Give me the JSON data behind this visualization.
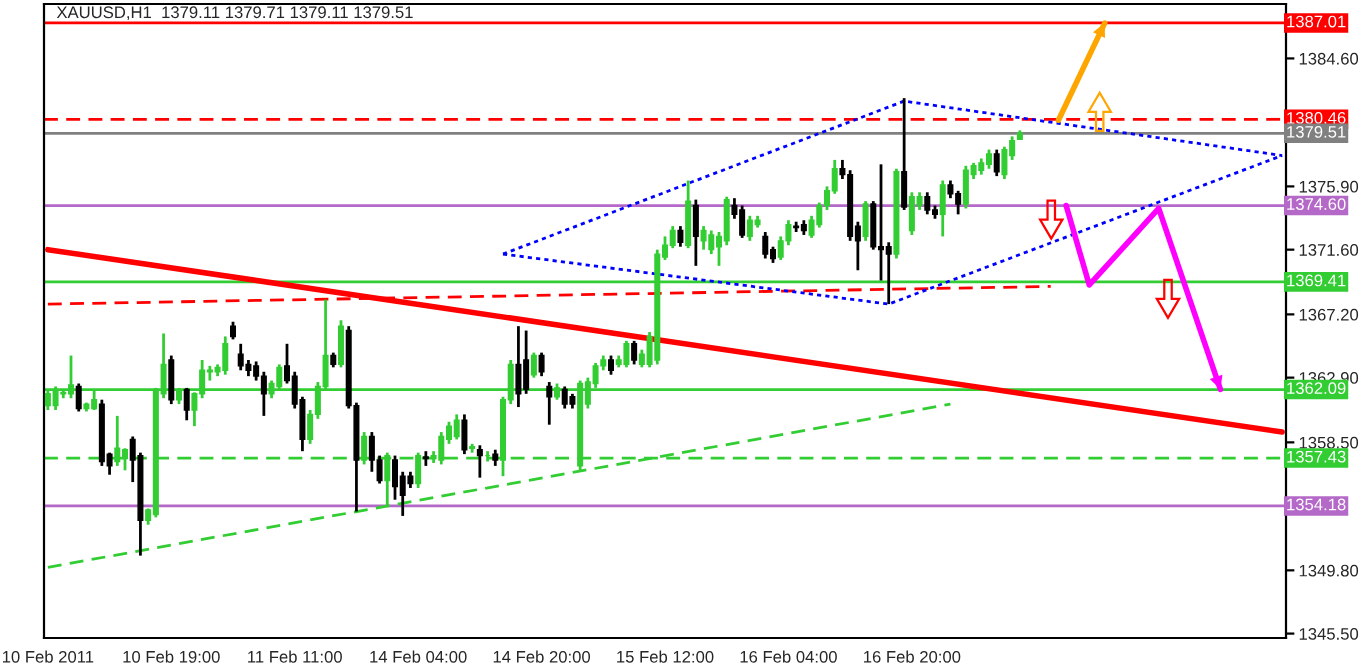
{
  "chart_data": {
    "type": "candlestick",
    "title": "XAUUSD,H1  1379.11 1379.71 1379.11 1379.51",
    "categories": [
      "10 Feb 2011",
      null,
      null,
      null,
      null,
      null,
      null,
      null,
      null,
      null,
      null,
      null,
      null,
      null,
      null,
      null,
      "10 Feb 19:00",
      null,
      null,
      null,
      null,
      null,
      null,
      null,
      null,
      null,
      null,
      null,
      null,
      null,
      null,
      null,
      "11 Feb 11:00",
      null,
      null,
      null,
      null,
      null,
      null,
      null,
      null,
      null,
      null,
      null,
      null,
      null,
      null,
      null,
      "14 Feb 04:00",
      null,
      null,
      null,
      null,
      null,
      null,
      null,
      null,
      null,
      null,
      null,
      null,
      null,
      null,
      null,
      "14 Feb 20:00",
      null,
      null,
      null,
      null,
      null,
      null,
      null,
      null,
      null,
      null,
      null,
      null,
      null,
      null,
      null,
      "15 Feb 12:00",
      null,
      null,
      null,
      null,
      null,
      null,
      null,
      null,
      null,
      null,
      null,
      null,
      null,
      null,
      null,
      "16 Feb 04:00",
      null,
      null,
      null,
      null,
      null,
      null,
      null,
      null,
      null,
      null,
      null,
      null,
      null,
      null,
      null,
      "16 Feb 20:00",
      null,
      null,
      null,
      null,
      null,
      null,
      null,
      null,
      null,
      null,
      null,
      null,
      null,
      null,
      null,
      null,
      null,
      null,
      null,
      null,
      null,
      null,
      null,
      null,
      null,
      null,
      null,
      null,
      null,
      null,
      null,
      null,
      null,
      null,
      null,
      null,
      null,
      null,
      null,
      null,
      null,
      null,
      null,
      null,
      null,
      null,
      null,
      null
    ],
    "ohlc": [
      [
        1361.0,
        1362.1,
        1360.7,
        1361.8
      ],
      [
        1361.0,
        1362.3,
        1360.7,
        1362.1
      ],
      [
        1361.8,
        1362.1,
        1361.5,
        1361.9
      ],
      [
        1361.8,
        1364.4,
        1361.5,
        1362.4
      ],
      [
        1362.3,
        1362.5,
        1360.6,
        1360.8
      ],
      [
        1360.8,
        1361.2,
        1360.6,
        1361.1
      ],
      [
        1360.8,
        1362.1,
        1360.7,
        1361.4
      ],
      [
        1361.1,
        1361.4,
        1356.9,
        1357.2
      ],
      [
        1357.7,
        1357.8,
        1356.3,
        1356.9
      ],
      [
        1357.2,
        1360.3,
        1356.9,
        1358.1
      ],
      [
        1357.4,
        1358.1,
        1356.6,
        1358.0
      ],
      [
        1358.7,
        1358.9,
        1355.8,
        1357.3
      ],
      [
        1357.6,
        1357.8,
        1350.8,
        1353.2
      ],
      [
        1353.2,
        1354.0,
        1352.9,
        1353.9
      ],
      [
        1353.6,
        1362.2,
        1353.4,
        1362.1
      ],
      [
        1361.8,
        1365.9,
        1361.5,
        1363.8
      ],
      [
        1364.1,
        1364.4,
        1361.1,
        1361.4
      ],
      [
        1361.4,
        1362.2,
        1361.1,
        1362.1
      ],
      [
        1362.1,
        1362.2,
        1360.0,
        1360.7
      ],
      [
        1360.7,
        1361.9,
        1359.6,
        1361.8
      ],
      [
        1361.8,
        1364.1,
        1361.5,
        1363.4
      ],
      [
        1363.3,
        1363.7,
        1362.7,
        1363.4
      ],
      [
        1363.3,
        1363.8,
        1363.0,
        1363.6
      ],
      [
        1363.4,
        1365.7,
        1363.1,
        1365.2
      ],
      [
        1366.4,
        1366.7,
        1365.5,
        1365.7
      ],
      [
        1364.5,
        1365.2,
        1363.4,
        1363.7
      ],
      [
        1363.8,
        1364.1,
        1363.0,
        1363.4
      ],
      [
        1363.7,
        1364.0,
        1362.7,
        1363.0
      ],
      [
        1363.0,
        1363.3,
        1360.3,
        1361.8
      ],
      [
        1361.8,
        1362.7,
        1361.5,
        1362.5
      ],
      [
        1362.3,
        1363.8,
        1362.1,
        1363.6
      ],
      [
        1363.7,
        1365.2,
        1362.5,
        1362.7
      ],
      [
        1363.0,
        1363.3,
        1360.8,
        1361.1
      ],
      [
        1361.4,
        1361.6,
        1357.9,
        1358.7
      ],
      [
        1358.7,
        1360.7,
        1358.4,
        1360.4
      ],
      [
        1360.4,
        1362.6,
        1360.1,
        1362.3
      ],
      [
        1362.3,
        1368.2,
        1362.1,
        1364.4
      ],
      [
        1364.4,
        1364.6,
        1363.6,
        1363.8
      ],
      [
        1363.8,
        1366.8,
        1363.6,
        1366.4
      ],
      [
        1366.1,
        1366.4,
        1360.8,
        1361.0
      ],
      [
        1361.0,
        1361.2,
        1353.8,
        1357.3
      ],
      [
        1357.3,
        1359.2,
        1357.0,
        1358.9
      ],
      [
        1358.9,
        1359.2,
        1356.5,
        1357.3
      ],
      [
        1357.3,
        1357.6,
        1355.7,
        1355.9
      ],
      [
        1355.9,
        1357.8,
        1354.2,
        1357.6
      ],
      [
        1357.3,
        1357.6,
        1354.6,
        1355.5
      ],
      [
        1356.2,
        1356.5,
        1353.5,
        1354.9
      ],
      [
        1356.2,
        1356.5,
        1355.4,
        1355.7
      ],
      [
        1355.7,
        1357.8,
        1355.4,
        1357.6
      ],
      [
        1357.5,
        1357.9,
        1356.9,
        1357.4
      ],
      [
        1357.4,
        1357.9,
        1357.1,
        1357.6
      ],
      [
        1357.3,
        1359.2,
        1357.0,
        1358.9
      ],
      [
        1358.7,
        1359.9,
        1358.4,
        1359.6
      ],
      [
        1358.9,
        1360.4,
        1358.7,
        1360.0
      ],
      [
        1360.0,
        1360.4,
        1357.7,
        1358.0
      ],
      [
        1358.1,
        1358.4,
        1357.8,
        1358.2
      ],
      [
        1358.0,
        1358.3,
        1356.1,
        1357.6
      ],
      [
        1357.6,
        1357.9,
        1357.2,
        1357.6
      ],
      [
        1357.7,
        1358.0,
        1356.9,
        1357.3
      ],
      [
        1357.3,
        1361.6,
        1356.2,
        1361.4
      ],
      [
        1361.4,
        1364.1,
        1361.1,
        1363.8
      ],
      [
        1363.8,
        1366.4,
        1360.9,
        1361.8
      ],
      [
        1364.1,
        1366.1,
        1361.8,
        1362.1
      ],
      [
        1363.1,
        1364.6,
        1362.9,
        1364.4
      ],
      [
        1364.4,
        1364.6,
        1363.0,
        1363.3
      ],
      [
        1362.3,
        1362.6,
        1359.7,
        1361.6
      ],
      [
        1361.6,
        1362.5,
        1361.4,
        1362.2
      ],
      [
        1362.1,
        1362.3,
        1360.8,
        1361.1
      ],
      [
        1361.6,
        1361.8,
        1360.8,
        1361.1
      ],
      [
        1356.9,
        1362.7,
        1356.6,
        1362.5
      ],
      [
        1361.1,
        1362.9,
        1360.8,
        1362.6
      ],
      [
        1362.5,
        1363.9,
        1362.2,
        1363.7
      ],
      [
        1363.7,
        1364.4,
        1363.4,
        1364.1
      ],
      [
        1364.1,
        1364.4,
        1363.1,
        1363.4
      ],
      [
        1363.8,
        1364.4,
        1363.6,
        1364.1
      ],
      [
        1363.8,
        1365.4,
        1363.6,
        1365.2
      ],
      [
        1365.2,
        1365.4,
        1363.8,
        1364.1
      ],
      [
        1363.8,
        1364.8,
        1363.6,
        1364.5
      ],
      [
        1363.8,
        1366.0,
        1363.6,
        1365.7
      ],
      [
        1364.1,
        1371.6,
        1363.8,
        1371.3
      ],
      [
        1371.1,
        1372.5,
        1370.9,
        1371.9
      ],
      [
        1371.9,
        1373.2,
        1371.7,
        1372.9
      ],
      [
        1372.9,
        1373.2,
        1371.8,
        1372.1
      ],
      [
        1371.9,
        1376.3,
        1371.7,
        1374.9
      ],
      [
        1374.6,
        1375.0,
        1370.5,
        1372.5
      ],
      [
        1372.2,
        1373.2,
        1371.6,
        1372.9
      ],
      [
        1371.6,
        1372.9,
        1371.3,
        1372.6
      ],
      [
        1371.8,
        1372.8,
        1370.5,
        1372.5
      ],
      [
        1372.2,
        1375.2,
        1371.9,
        1375.0
      ],
      [
        1374.6,
        1375.1,
        1373.7,
        1374.0
      ],
      [
        1374.3,
        1374.6,
        1372.4,
        1372.6
      ],
      [
        1372.5,
        1373.9,
        1372.2,
        1373.6
      ],
      [
        1373.3,
        1373.9,
        1373.1,
        1373.6
      ],
      [
        1372.5,
        1372.8,
        1371.0,
        1371.3
      ],
      [
        1371.6,
        1371.8,
        1370.7,
        1371.0
      ],
      [
        1371.1,
        1372.5,
        1370.9,
        1372.2
      ],
      [
        1372.2,
        1373.6,
        1371.9,
        1373.3
      ],
      [
        1373.2,
        1373.5,
        1372.8,
        1373.1
      ],
      [
        1373.3,
        1373.6,
        1372.6,
        1372.9
      ],
      [
        1372.6,
        1373.9,
        1372.4,
        1373.6
      ],
      [
        1373.3,
        1374.8,
        1373.1,
        1374.6
      ],
      [
        1374.6,
        1375.9,
        1374.3,
        1375.6
      ],
      [
        1375.6,
        1377.7,
        1375.4,
        1377.1
      ],
      [
        1377.1,
        1377.7,
        1376.4,
        1376.7
      ],
      [
        1376.7,
        1377.0,
        1372.2,
        1372.5
      ],
      [
        1373.2,
        1373.5,
        1370.2,
        1372.2
      ],
      [
        1372.5,
        1374.9,
        1372.2,
        1374.7
      ],
      [
        1374.7,
        1374.9,
        1371.6,
        1371.8
      ],
      [
        1371.8,
        1377.4,
        1369.5,
        1371.6
      ],
      [
        1371.8,
        1372.1,
        1367.9,
        1371.3
      ],
      [
        1371.3,
        1377.1,
        1371.0,
        1376.9
      ],
      [
        1376.9,
        1381.9,
        1374.3,
        1374.5
      ],
      [
        1372.9,
        1375.5,
        1372.6,
        1375.2
      ],
      [
        1374.6,
        1375.5,
        1374.3,
        1375.2
      ],
      [
        1375.2,
        1375.5,
        1374.0,
        1374.3
      ],
      [
        1374.3,
        1374.6,
        1373.7,
        1374.0
      ],
      [
        1374.0,
        1376.3,
        1372.5,
        1376.0
      ],
      [
        1376.0,
        1376.3,
        1375.1,
        1375.4
      ],
      [
        1375.4,
        1375.6,
        1374.0,
        1374.7
      ],
      [
        1374.7,
        1377.3,
        1374.4,
        1377.0
      ],
      [
        1376.7,
        1377.5,
        1376.4,
        1377.3
      ],
      [
        1377.0,
        1377.8,
        1376.7,
        1377.5
      ],
      [
        1377.4,
        1378.4,
        1377.1,
        1378.1
      ],
      [
        1378.1,
        1378.4,
        1376.6,
        1376.9
      ],
      [
        1376.7,
        1378.6,
        1376.4,
        1378.4
      ],
      [
        1378.0,
        1379.3,
        1377.7,
        1379.0
      ],
      [
        1379.11,
        1379.71,
        1379.11,
        1379.51
      ],
      null,
      null,
      null,
      null,
      null,
      null,
      null,
      null,
      null,
      null,
      null,
      null,
      null,
      null,
      null,
      null,
      null,
      null,
      null,
      null,
      null,
      null,
      null,
      null,
      null,
      null,
      null,
      null,
      null,
      null,
      null,
      null,
      null,
      null
    ],
    "colors": [
      "#32cd32",
      "#32cd32",
      "#32cd32",
      "#32cd32",
      "#000000",
      "#32cd32",
      "#32cd32",
      "#000000",
      "#000000",
      "#32cd32",
      "#32cd32",
      "#000000",
      "#000000",
      "#32cd32",
      "#32cd32",
      "#32cd32",
      "#000000",
      "#32cd32",
      "#000000",
      "#32cd32",
      "#32cd32",
      "#32cd32",
      "#32cd32",
      "#32cd32",
      "#000000",
      "#000000",
      "#000000",
      "#000000",
      "#000000",
      "#32cd32",
      "#32cd32",
      "#000000",
      "#000000",
      "#000000",
      "#32cd32",
      "#32cd32",
      "#32cd32",
      "#000000",
      "#32cd32",
      "#000000",
      "#000000",
      "#32cd32",
      "#000000",
      "#000000",
      "#32cd32",
      "#000000",
      "#000000",
      "#000000",
      "#32cd32",
      "#000000",
      "#32cd32",
      "#32cd32",
      "#32cd32",
      "#32cd32",
      "#000000",
      "#32cd32",
      "#000000",
      "#32cd32",
      "#000000",
      "#32cd32",
      "#32cd32",
      "#000000",
      "#000000",
      "#32cd32",
      "#000000",
      "#000000",
      "#32cd32",
      "#000000",
      "#000000",
      "#32cd32",
      "#32cd32",
      "#32cd32",
      "#32cd32",
      "#000000",
      "#32cd32",
      "#32cd32",
      "#000000",
      "#32cd32",
      "#32cd32",
      "#32cd32",
      "#32cd32",
      "#32cd32",
      "#000000",
      "#32cd32",
      "#000000",
      "#32cd32",
      "#32cd32",
      "#32cd32",
      "#32cd32",
      "#000000",
      "#000000",
      "#32cd32",
      "#32cd32",
      "#000000",
      "#000000",
      "#32cd32",
      "#32cd32",
      "#000000",
      "#000000",
      "#32cd32",
      "#32cd32",
      "#32cd32",
      "#32cd32",
      "#000000",
      "#000000",
      "#000000",
      "#32cd32",
      "#000000",
      "#000000",
      "#000000",
      "#32cd32",
      "#000000",
      "#32cd32",
      "#32cd32",
      "#000000",
      "#000000",
      "#32cd32",
      "#000000",
      "#000000",
      "#32cd32",
      "#32cd32",
      "#32cd32",
      "#32cd32",
      "#000000",
      "#32cd32",
      "#32cd32",
      "#32cd32",
      null,
      null,
      null,
      null,
      null,
      null,
      null,
      null,
      null,
      null,
      null,
      null,
      null,
      null,
      null,
      null,
      null,
      null,
      null,
      null,
      null,
      null,
      null,
      null,
      null,
      null,
      null,
      null,
      null,
      null,
      null,
      null,
      null,
      null
    ],
    "series": [
      {
        "type": "line",
        "color": "#ff0000",
        "line_style": "solid",
        "values": [
          1371.6,
          null,
          null,
          null,
          null,
          null,
          null,
          null,
          null,
          null,
          null,
          null,
          null,
          null,
          null,
          null,
          null,
          null,
          null,
          null,
          null,
          null,
          null,
          null,
          null,
          null,
          null,
          null,
          null,
          null,
          null,
          null,
          null,
          null,
          null,
          null,
          null,
          null,
          null,
          null,
          null,
          null,
          null,
          null,
          null,
          null,
          null,
          null,
          null,
          null,
          null,
          null,
          null,
          null,
          null,
          null,
          null,
          null,
          null,
          null,
          null,
          null,
          null,
          null,
          null,
          null,
          null,
          null,
          null,
          null,
          null,
          null,
          null,
          null,
          null,
          null,
          null,
          null,
          null,
          null,
          null,
          null,
          null,
          null,
          null,
          null,
          null,
          null,
          null,
          null,
          null,
          null,
          null,
          null,
          null,
          null,
          null,
          null,
          null,
          null,
          null,
          null,
          null,
          null,
          null,
          null,
          null,
          null,
          null,
          null,
          null,
          null,
          null,
          null,
          null,
          null,
          null,
          null,
          null,
          null,
          null,
          null,
          null,
          null,
          null,
          null,
          null,
          null,
          null,
          null,
          null,
          null,
          null,
          null,
          null,
          null,
          null,
          null,
          null,
          null,
          null,
          null,
          null,
          null,
          null,
          null,
          null,
          null,
          null,
          null,
          null,
          null,
          null,
          null,
          null,
          null,
          null,
          null,
          null,
          null,
          1359.2
        ]
      },
      {
        "type": "line",
        "color": "#ff0000",
        "line_style": "dashed",
        "values": [
          1367.9,
          null,
          null,
          null,
          null,
          null,
          null,
          null,
          null,
          null,
          null,
          null,
          null,
          null,
          null,
          null,
          null,
          null,
          null,
          null,
          null,
          null,
          null,
          null,
          null,
          null,
          null,
          null,
          null,
          null,
          null,
          null,
          null,
          null,
          null,
          null,
          null,
          null,
          null,
          null,
          null,
          null,
          null,
          null,
          null,
          null,
          null,
          null,
          null,
          null,
          null,
          null,
          null,
          null,
          null,
          null,
          null,
          null,
          null,
          null,
          null,
          null,
          null,
          null,
          null,
          null,
          null,
          null,
          null,
          null,
          null,
          null,
          null,
          null,
          null,
          null,
          null,
          null,
          null,
          null,
          null,
          null,
          null,
          null,
          null,
          null,
          null,
          null,
          null,
          null,
          null,
          null,
          null,
          null,
          null,
          null,
          null,
          null,
          null,
          null,
          null,
          null,
          null,
          null,
          null,
          null,
          null,
          null,
          null,
          null,
          null,
          null,
          null,
          null,
          null,
          null,
          null,
          null,
          null,
          null,
          null,
          null,
          null,
          null,
          null,
          null,
          null,
          null,
          null,
          null,
          1369.1,
          null,
          null,
          null,
          null,
          null,
          null,
          null,
          null,
          null,
          null,
          null,
          null,
          null,
          null,
          null,
          null,
          null,
          null,
          null,
          null,
          null,
          null,
          null,
          null,
          null,
          null,
          null,
          null,
          null,
          null
        ]
      },
      {
        "type": "line",
        "color": "#32cd32",
        "line_style": "dashed",
        "values": [
          1350.0,
          null,
          null,
          null,
          null,
          null,
          null,
          null,
          null,
          null,
          null,
          null,
          null,
          null,
          null,
          null,
          null,
          null,
          null,
          null,
          null,
          null,
          null,
          null,
          null,
          null,
          null,
          null,
          null,
          null,
          null,
          null,
          null,
          null,
          null,
          null,
          null,
          null,
          null,
          null,
          null,
          null,
          null,
          null,
          null,
          null,
          null,
          null,
          null,
          null,
          null,
          null,
          null,
          null,
          null,
          null,
          null,
          null,
          null,
          null,
          null,
          null,
          null,
          null,
          null,
          null,
          null,
          null,
          null,
          null,
          null,
          null,
          null,
          null,
          null,
          null,
          null,
          null,
          null,
          null,
          null,
          null,
          null,
          null,
          null,
          null,
          null,
          null,
          null,
          null,
          null,
          null,
          null,
          null,
          null,
          null,
          null,
          null,
          null,
          null,
          null,
          null,
          null,
          null,
          null,
          null,
          null,
          null,
          null,
          null,
          null,
          null,
          null,
          null,
          null,
          null,
          null,
          1361.1,
          null,
          null,
          null,
          null,
          null,
          null,
          null,
          null,
          null,
          null,
          null,
          null,
          null,
          null,
          null,
          null,
          null,
          null,
          null,
          null,
          null,
          null,
          null,
          null,
          null,
          null,
          null,
          null,
          null,
          null,
          null,
          null,
          null,
          null,
          null,
          null,
          null,
          null,
          null,
          null,
          null,
          null,
          null
        ]
      },
      {
        "type": "line",
        "color": "#0000ff",
        "line_style": "dotted",
        "values": [
          null,
          null,
          null,
          null,
          null,
          null,
          null,
          null,
          null,
          null,
          null,
          null,
          null,
          null,
          null,
          null,
          null,
          null,
          null,
          null,
          null,
          null,
          null,
          null,
          null,
          null,
          null,
          null,
          null,
          null,
          null,
          null,
          null,
          null,
          null,
          null,
          null,
          null,
          null,
          null,
          null,
          null,
          null,
          null,
          null,
          null,
          null,
          null,
          null,
          null,
          null,
          null,
          null,
          null,
          null,
          null,
          null,
          null,
          null,
          1371.3,
          null,
          null,
          null,
          null,
          null,
          null,
          null,
          null,
          null,
          null,
          null,
          null,
          null,
          null,
          null,
          null,
          null,
          null,
          null,
          null,
          null,
          null,
          null,
          null,
          null,
          null,
          null,
          null,
          null,
          null,
          null,
          null,
          null,
          null,
          null,
          null,
          null,
          null,
          null,
          null,
          null,
          null,
          null,
          null,
          null,
          null,
          null,
          null,
          null,
          null,
          null,
          1381.7,
          null,
          null,
          null,
          null,
          null,
          null,
          null,
          null,
          null,
          null,
          null,
          null,
          null,
          null,
          null,
          null,
          null,
          null,
          null,
          null,
          null,
          null,
          null,
          null,
          null,
          null,
          null,
          null,
          null,
          null,
          null,
          null,
          null,
          null,
          null,
          null,
          null,
          null,
          null,
          null,
          null,
          null,
          null,
          null,
          null,
          null,
          null,
          null,
          1378.0
        ]
      },
      {
        "type": "line",
        "color": "#0000ff",
        "line_style": "dotted",
        "values": [
          null,
          null,
          null,
          null,
          null,
          null,
          null,
          null,
          null,
          null,
          null,
          null,
          null,
          null,
          null,
          null,
          null,
          null,
          null,
          null,
          null,
          null,
          null,
          null,
          null,
          null,
          null,
          null,
          null,
          null,
          null,
          null,
          null,
          null,
          null,
          null,
          null,
          null,
          null,
          null,
          null,
          null,
          null,
          null,
          null,
          null,
          null,
          null,
          null,
          null,
          null,
          null,
          null,
          null,
          null,
          null,
          null,
          null,
          null,
          1371.3,
          null,
          null,
          null,
          null,
          null,
          null,
          null,
          null,
          null,
          null,
          null,
          null,
          null,
          null,
          null,
          null,
          null,
          null,
          null,
          null,
          null,
          null,
          null,
          null,
          null,
          null,
          null,
          null,
          null,
          null,
          null,
          null,
          null,
          null,
          null,
          null,
          null,
          null,
          null,
          null,
          null,
          null,
          null,
          null,
          null,
          null,
          null,
          null,
          null,
          1367.9,
          null,
          null,
          null,
          null,
          null,
          null,
          null,
          null,
          null,
          null,
          null,
          null,
          null,
          null,
          null,
          null,
          null,
          null,
          null,
          null,
          null,
          null,
          null,
          null,
          null,
          null,
          null,
          null,
          null,
          null,
          null,
          null,
          null,
          null,
          null,
          null,
          null,
          null,
          null,
          null,
          null,
          null,
          null,
          null,
          null,
          null,
          null,
          null,
          null,
          null,
          1378.0
        ]
      },
      {
        "type": "line",
        "color": "#ffa500",
        "line_style": "solid",
        "values": [
          null,
          null,
          null,
          null,
          null,
          null,
          null,
          null,
          null,
          null,
          null,
          null,
          null,
          null,
          null,
          null,
          null,
          null,
          null,
          null,
          null,
          null,
          null,
          null,
          null,
          null,
          null,
          null,
          null,
          null,
          null,
          null,
          null,
          null,
          null,
          null,
          null,
          null,
          null,
          null,
          null,
          null,
          null,
          null,
          null,
          null,
          null,
          null,
          null,
          null,
          null,
          null,
          null,
          null,
          null,
          null,
          null,
          null,
          null,
          null,
          null,
          null,
          null,
          null,
          null,
          null,
          null,
          null,
          null,
          null,
          null,
          null,
          null,
          null,
          null,
          null,
          null,
          null,
          null,
          null,
          null,
          null,
          null,
          null,
          null,
          null,
          null,
          null,
          null,
          null,
          null,
          null,
          null,
          null,
          null,
          null,
          null,
          null,
          null,
          null,
          null,
          null,
          null,
          null,
          null,
          null,
          null,
          null,
          null,
          null,
          null,
          null,
          null,
          null,
          null,
          null,
          null,
          null,
          null,
          null,
          null,
          null,
          null,
          null,
          null,
          null,
          null,
          null,
          null,
          null,
          null,
          1380.4,
          null,
          null,
          null,
          null,
          null,
          1387.0,
          null,
          null,
          null,
          null,
          null,
          null,
          null,
          null,
          null,
          null,
          null,
          null,
          null,
          null,
          null,
          null,
          null,
          null,
          null,
          null,
          null,
          null,
          null
        ]
      },
      {
        "type": "line",
        "color": "#ff00ff",
        "line_style": "solid",
        "values": [
          null,
          null,
          null,
          null,
          null,
          null,
          null,
          null,
          null,
          null,
          null,
          null,
          null,
          null,
          null,
          null,
          null,
          null,
          null,
          null,
          null,
          null,
          null,
          null,
          null,
          null,
          null,
          null,
          null,
          null,
          null,
          null,
          null,
          null,
          null,
          null,
          null,
          null,
          null,
          null,
          null,
          null,
          null,
          null,
          null,
          null,
          null,
          null,
          null,
          null,
          null,
          null,
          null,
          null,
          null,
          null,
          null,
          null,
          null,
          null,
          null,
          null,
          null,
          null,
          null,
          null,
          null,
          null,
          null,
          null,
          null,
          null,
          null,
          null,
          null,
          null,
          null,
          null,
          null,
          null,
          null,
          null,
          null,
          null,
          null,
          null,
          null,
          null,
          null,
          null,
          null,
          null,
          null,
          null,
          null,
          null,
          null,
          null,
          null,
          null,
          null,
          null,
          null,
          null,
          null,
          null,
          null,
          null,
          null,
          null,
          null,
          null,
          null,
          null,
          null,
          null,
          null,
          null,
          null,
          null,
          null,
          null,
          null,
          null,
          null,
          null,
          null,
          null,
          null,
          null,
          null,
          null,
          1374.6,
          null,
          null,
          1369.2,
          null,
          null,
          null,
          null,
          null,
          null,
          null,
          null,
          1374.4,
          null,
          null,
          null,
          null,
          null,
          null,
          null,
          1362.1,
          null,
          null,
          null,
          null,
          null,
          null,
          null,
          null
        ]
      }
    ],
    "ref_lines": [
      {
        "axis": "y",
        "value": 1387.01,
        "label": "1387.01",
        "color": "#ff0000",
        "line_style": "solid"
      },
      {
        "axis": "y",
        "value": 1380.46,
        "label": "1380.46",
        "color": "#ff0000",
        "line_style": "dashed"
      },
      {
        "axis": "y",
        "value": 1379.51,
        "label": "1379.51",
        "color": "#808080",
        "line_style": "solid"
      },
      {
        "axis": "y",
        "value": 1374.6,
        "label": "1374.60",
        "color": "#b469c8",
        "line_style": "solid"
      },
      {
        "axis": "y",
        "value": 1369.41,
        "label": "1369.41",
        "color": "#32cd32",
        "line_style": "solid"
      },
      {
        "axis": "y",
        "value": 1362.09,
        "label": "1362.09",
        "color": "#32cd32",
        "line_style": "solid"
      },
      {
        "axis": "y",
        "value": 1357.43,
        "label": "1357.43",
        "color": "#32cd32",
        "line_style": "dashed"
      },
      {
        "axis": "y",
        "value": 1354.18,
        "label": "1354.18",
        "color": "#b469c8",
        "line_style": "solid"
      }
    ],
    "ylim": [
      1345.2,
      1388.3
    ],
    "yticks": [
      {
        "value": 1384.6,
        "label": "1384.60"
      },
      {
        "value": 1375.9,
        "label": "1375.90"
      },
      {
        "value": 1371.6,
        "label": "1371.60"
      },
      {
        "value": 1367.2,
        "label": "1367.20"
      },
      {
        "value": 1362.9,
        "label": "1362.90"
      },
      {
        "value": 1358.5,
        "label": "1358.50"
      },
      {
        "value": 1349.8,
        "label": "1349.80"
      },
      {
        "value": 1345.5,
        "label": "1345.50"
      }
    ],
    "grid": false,
    "legend": false
  }
}
